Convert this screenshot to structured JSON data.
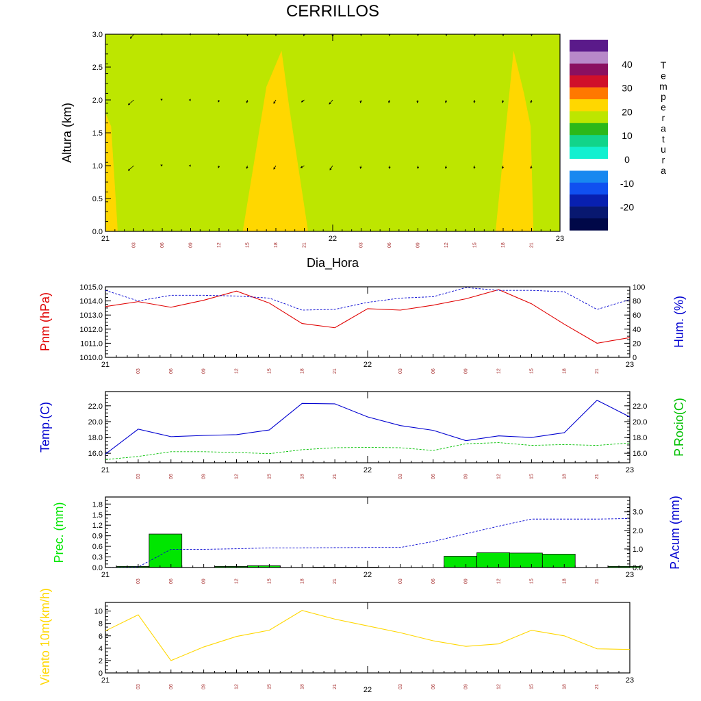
{
  "title": "CERRILLOS",
  "chart_data": [
    {
      "type": "heatmap",
      "name": "cross-section",
      "ylabel": "Altura (km)",
      "xlabel": "Dia_Hora",
      "ylim": [
        0.0,
        3.0
      ],
      "yticks": [
        "0.0",
        "0.5",
        "1.0",
        "1.5",
        "2.0",
        "2.5",
        "3.0"
      ],
      "day_labels": [
        "21",
        "22",
        "23"
      ],
      "hour_labels": [
        "03",
        "06",
        "09",
        "12",
        "15",
        "18",
        "21",
        "03",
        "06",
        "09",
        "12",
        "15",
        "18",
        "21"
      ],
      "hours_since_start": [
        0,
        3,
        6,
        9,
        12,
        15,
        18,
        21,
        24,
        27,
        30,
        33,
        36,
        39,
        42,
        45,
        48
      ],
      "fill_colors": {
        "background": "#bde600",
        "warm": "#ffd700"
      },
      "warm_regions": [
        [
          [
            0,
            0
          ],
          [
            1.3,
            0
          ],
          [
            0.6,
            1.6
          ],
          [
            0,
            1.8
          ]
        ],
        [
          [
            14.5,
            0
          ],
          [
            17,
            2.2
          ],
          [
            18.6,
            2.75
          ],
          [
            19.4,
            1.9
          ],
          [
            21.4,
            0
          ]
        ],
        [
          [
            41.2,
            0
          ],
          [
            43.1,
            2.75
          ],
          [
            44.2,
            2.1
          ],
          [
            44.9,
            1.6
          ],
          [
            45.2,
            0
          ]
        ]
      ],
      "wind_levels": [
        1.0,
        2.0,
        3.0
      ],
      "wind_arrows": [
        {
          "t": 3,
          "z": 3.0,
          "u": -0.5,
          "v": -0.6
        },
        {
          "t": 3,
          "z": 2.0,
          "u": -0.8,
          "v": -0.7
        },
        {
          "t": 3,
          "z": 1.0,
          "u": -0.8,
          "v": -0.7
        },
        {
          "t": 6,
          "z": 3.0,
          "u": -0.2,
          "v": 0
        },
        {
          "t": 6,
          "z": 2.0,
          "u": -0.2,
          "v": 0.1
        },
        {
          "t": 6,
          "z": 1.0,
          "u": -0.2,
          "v": 0.1
        },
        {
          "t": 9,
          "z": 3.0,
          "u": -0.2,
          "v": 0
        },
        {
          "t": 9,
          "z": 2.0,
          "u": -0.2,
          "v": 0
        },
        {
          "t": 9,
          "z": 1.0,
          "u": -0.2,
          "v": 0
        },
        {
          "t": 12,
          "z": 3.0,
          "u": -0.1,
          "v": -0.1
        },
        {
          "t": 12,
          "z": 2.0,
          "u": -0.1,
          "v": -0.3
        },
        {
          "t": 12,
          "z": 1.0,
          "u": -0.1,
          "v": -0.3
        },
        {
          "t": 15,
          "z": 3.0,
          "u": 0,
          "v": -0.2
        },
        {
          "t": 15,
          "z": 2.0,
          "u": -0.1,
          "v": -0.4
        },
        {
          "t": 15,
          "z": 1.0,
          "u": -0.1,
          "v": -0.4
        },
        {
          "t": 18,
          "z": 3.0,
          "u": 0,
          "v": -0.2
        },
        {
          "t": 18,
          "z": 2.0,
          "u": -0.3,
          "v": -0.5
        },
        {
          "t": 18,
          "z": 1.0,
          "u": -0.3,
          "v": -0.5
        },
        {
          "t": 21,
          "z": 3.0,
          "u": -0.1,
          "v": -0.2
        },
        {
          "t": 21,
          "z": 2.0,
          "u": -0.4,
          "v": -0.3
        },
        {
          "t": 21,
          "z": 1.0,
          "u": -0.5,
          "v": -0.3
        },
        {
          "t": 24,
          "z": 3.0,
          "u": 0,
          "v": -0.3
        },
        {
          "t": 24,
          "z": 2.0,
          "u": -0.5,
          "v": -0.6
        },
        {
          "t": 24,
          "z": 1.0,
          "u": -0.4,
          "v": -0.6
        },
        {
          "t": 27,
          "z": 3.0,
          "u": 0,
          "v": -0.2
        },
        {
          "t": 27,
          "z": 2.0,
          "u": -0.1,
          "v": -0.4
        },
        {
          "t": 27,
          "z": 1.0,
          "u": -0.1,
          "v": -0.4
        },
        {
          "t": 30,
          "z": 3.0,
          "u": 0,
          "v": -0.2
        },
        {
          "t": 30,
          "z": 2.0,
          "u": -0.1,
          "v": -0.4
        },
        {
          "t": 30,
          "z": 1.0,
          "u": 0,
          "v": -0.4
        },
        {
          "t": 33,
          "z": 3.0,
          "u": 0,
          "v": -0.2
        },
        {
          "t": 33,
          "z": 2.0,
          "u": -0.1,
          "v": -0.4
        },
        {
          "t": 33,
          "z": 1.0,
          "u": 0,
          "v": -0.4
        },
        {
          "t": 36,
          "z": 3.0,
          "u": 0,
          "v": -0.2
        },
        {
          "t": 36,
          "z": 2.0,
          "u": -0.1,
          "v": -0.4
        },
        {
          "t": 36,
          "z": 1.0,
          "u": -0.1,
          "v": -0.4
        },
        {
          "t": 39,
          "z": 3.0,
          "u": 0,
          "v": -0.2
        },
        {
          "t": 39,
          "z": 2.0,
          "u": -0.1,
          "v": -0.4
        },
        {
          "t": 39,
          "z": 1.0,
          "u": -0.1,
          "v": -0.4
        },
        {
          "t": 42,
          "z": 3.0,
          "u": 0,
          "v": -0.2
        },
        {
          "t": 42,
          "z": 2.0,
          "u": -0.1,
          "v": -0.4
        },
        {
          "t": 42,
          "z": 1.0,
          "u": -0.1,
          "v": -0.4
        },
        {
          "t": 45,
          "z": 3.0,
          "u": 0,
          "v": -0.2
        },
        {
          "t": 45,
          "z": 2.0,
          "u": -0.1,
          "v": -0.4
        },
        {
          "t": 45,
          "z": 1.0,
          "u": -0.1,
          "v": -0.4
        }
      ],
      "colorbar": {
        "label": "Temperatura",
        "tick_labels": [
          "40",
          "30",
          "20",
          "10",
          "0",
          "-10",
          "-20"
        ],
        "colors": [
          "#5a1a8a",
          "#b889c9",
          "#8a1060",
          "#d0102a",
          "#ff7800",
          "#ffd700",
          "#bde600",
          "#2cb819",
          "#12d48a",
          "#12f0d0",
          "#ffffff",
          "#1888f0",
          "#1050f0",
          "#0820b0",
          "#081870",
          "#000848"
        ]
      }
    },
    {
      "type": "line",
      "name": "pressure-humidity",
      "ylabel_left": "Pnm (hPa)",
      "ylabel_right": "Hum. (%)",
      "ylim_left": [
        1010.0,
        1015.0
      ],
      "ylim_right": [
        0,
        100
      ],
      "yticks_left": [
        "1010.0",
        "1011.0",
        "1012.0",
        "1013.0",
        "1014.0",
        "1015.0"
      ],
      "yticks_right": [
        "0",
        "20",
        "40",
        "60",
        "80",
        "100"
      ],
      "colors": {
        "left": "#e00000",
        "right": "#0000d0"
      },
      "x": [
        0,
        3,
        6,
        9,
        12,
        15,
        18,
        21,
        24,
        27,
        30,
        33,
        36,
        39,
        42,
        45,
        48
      ],
      "series": [
        {
          "axis": "left",
          "style": "solid",
          "values": [
            1013.6,
            1013.95,
            1013.55,
            1014.05,
            1014.7,
            1013.85,
            1012.4,
            1012.1,
            1013.45,
            1013.35,
            1013.7,
            1014.15,
            1014.8,
            1013.8,
            1012.35,
            1011.0,
            1011.4
          ]
        },
        {
          "axis": "right",
          "style": "dashed",
          "values": [
            95,
            80,
            88,
            88,
            87,
            84,
            67,
            68,
            78,
            84,
            86,
            99,
            95,
            95,
            93,
            68,
            82
          ]
        }
      ]
    },
    {
      "type": "line",
      "name": "temperature-dewpoint",
      "ylabel_left": "Temp.(C)",
      "ylabel_right": "P.Rocio(C)",
      "ylim_left": [
        14.8,
        23.8
      ],
      "ylim_right": [
        14.8,
        23.8
      ],
      "yticks_left": [
        "16.0",
        "18.0",
        "20.0",
        "22.0"
      ],
      "yticks_right": [
        "16.0",
        "18.0",
        "20.0",
        "22.0"
      ],
      "colors": {
        "left": "#0000d0",
        "right": "#00c000"
      },
      "x": [
        0,
        3,
        6,
        9,
        12,
        15,
        18,
        21,
        24,
        27,
        30,
        33,
        36,
        39,
        42,
        45,
        48
      ],
      "series": [
        {
          "axis": "left",
          "style": "solid",
          "values": [
            15.9,
            19.05,
            18.1,
            18.25,
            18.35,
            18.95,
            22.3,
            22.25,
            20.6,
            19.5,
            18.9,
            17.6,
            18.2,
            18.0,
            18.6,
            22.7,
            20.6
          ]
        },
        {
          "axis": "right",
          "style": "dashed",
          "values": [
            15.2,
            15.6,
            16.2,
            16.2,
            16.1,
            15.95,
            16.45,
            16.7,
            16.75,
            16.7,
            16.35,
            17.2,
            17.35,
            17.0,
            17.1,
            17.0,
            17.3
          ]
        }
      ]
    },
    {
      "type": "bar",
      "name": "precipitation",
      "ylabel_left": "Prec. (mm)",
      "ylabel_right": "P.Acum (mm)",
      "ylim_left": [
        0,
        2.0
      ],
      "ylim_right": [
        0,
        3.8
      ],
      "yticks_left": [
        "0.0",
        "0.3",
        "0.6",
        "0.9",
        "1.2",
        "1.5",
        "1.8"
      ],
      "yticks_right": [
        "0.0",
        "1.0",
        "2.0",
        "3.0"
      ],
      "colors": {
        "bars": "#00e600",
        "left": "#00e600",
        "right": "#0000d0"
      },
      "bar_starts": [
        1,
        4,
        7,
        10,
        13,
        16,
        19,
        22,
        25,
        28,
        31,
        34,
        37,
        40,
        43,
        46
      ],
      "bar_width": 3,
      "bar_values": [
        0.03,
        0.95,
        0,
        0.03,
        0.05,
        0,
        0.01,
        0.01,
        0,
        0,
        0.32,
        0.42,
        0.41,
        0.38,
        0,
        0.03
      ],
      "cumulative": {
        "x": [
          0,
          3,
          4.5,
          6,
          7.5,
          9,
          12,
          15,
          18,
          21,
          24,
          27,
          30,
          33,
          36,
          39,
          42,
          45,
          48
        ],
        "values": [
          0,
          0.03,
          0.5,
          0.98,
          0.98,
          0.98,
          1.01,
          1.06,
          1.06,
          1.07,
          1.08,
          1.08,
          1.4,
          1.82,
          2.23,
          2.61,
          2.61,
          2.61,
          2.64
        ]
      }
    },
    {
      "type": "line",
      "name": "wind",
      "ylabel_left": "Viento 10m(km/h)",
      "ylim_left": [
        0,
        11.4
      ],
      "yticks_left": [
        "0",
        "2",
        "4",
        "6",
        "8",
        "10"
      ],
      "colors": {
        "left": "#ffd700"
      },
      "x": [
        0,
        3,
        6,
        9,
        12,
        15,
        18,
        21,
        24,
        27,
        30,
        33,
        36,
        39,
        42,
        45,
        48
      ],
      "series": [
        {
          "axis": "left",
          "style": "solid",
          "values": [
            6.8,
            9.4,
            2.0,
            4.2,
            5.9,
            6.9,
            10.1,
            8.7,
            7.6,
            6.5,
            5.2,
            4.3,
            4.7,
            6.9,
            6.0,
            3.9,
            3.8
          ]
        }
      ]
    }
  ]
}
